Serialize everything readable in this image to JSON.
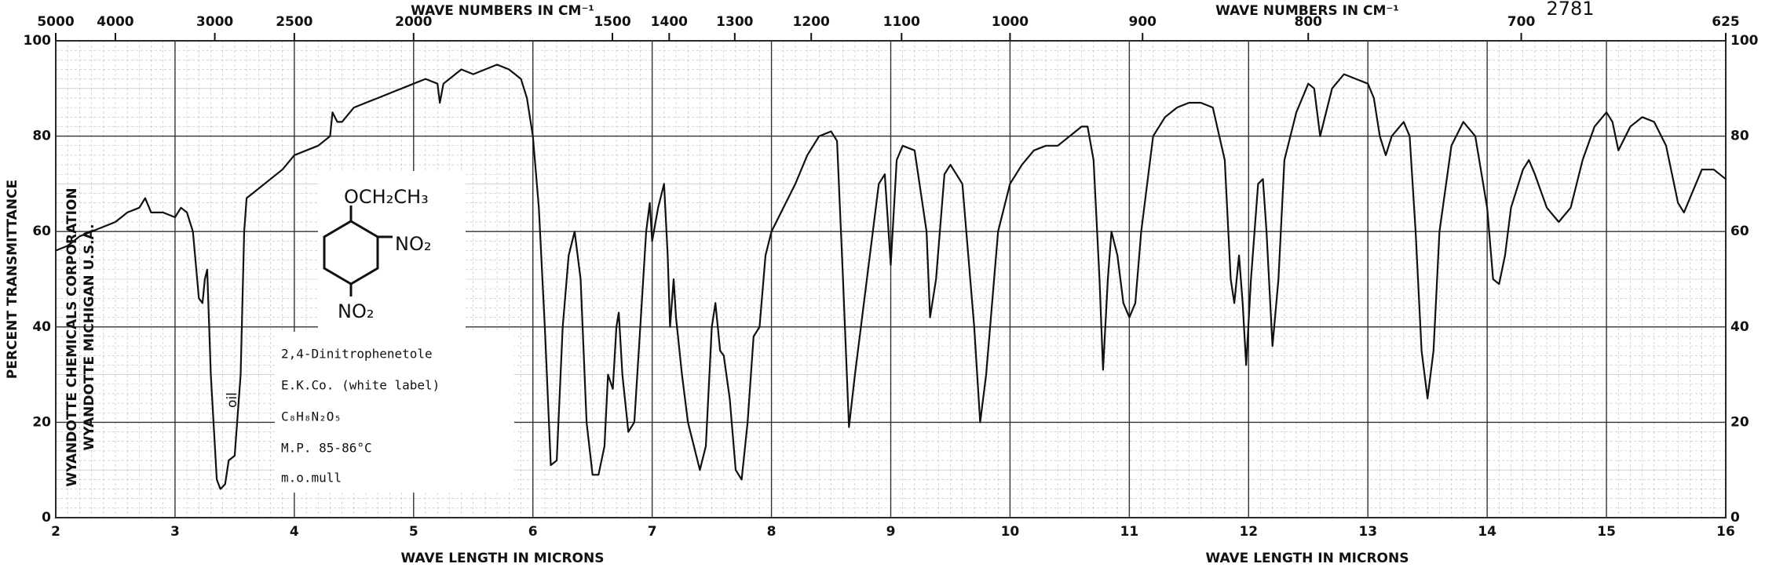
{
  "chart_data": {
    "type": "line",
    "sample_number": "2781",
    "x2label": "WAVE NUMBERS IN CM⁻¹",
    "xlabel": "WAVE LENGTH IN MICRONS",
    "ylabel": "PERCENT TRANSMITTANCE",
    "publisher": [
      "WYANDOTTE CHEMICALS CORPORATION",
      "WYANDOTTE MICHIGAN U.S.A."
    ],
    "band_note": "oil",
    "structure": [
      "OCH₂CH₃",
      "NO₂",
      "NO₂"
    ],
    "sample_info": [
      "2,4-Dinitrophenetole",
      "E.K.Co. (white label)",
      "C₈H₈N₂O₅",
      "M.P. 85-86°C",
      "m.o.mull"
    ],
    "xlim": [
      2,
      16
    ],
    "ylim": [
      0,
      100
    ],
    "xticks": [
      2,
      3,
      4,
      5,
      6,
      7,
      8,
      9,
      10,
      11,
      12,
      13,
      14,
      15,
      16
    ],
    "yticks": [
      0,
      20,
      40,
      60,
      80,
      100
    ],
    "x2lim": [
      5000,
      625
    ],
    "x2scale": "reciprocal",
    "x2ticks": [
      5000,
      4000,
      3000,
      2500,
      2000,
      1500,
      1400,
      1300,
      1200,
      1100,
      1000,
      900,
      800,
      700,
      625
    ],
    "grid": true,
    "color": "#111111",
    "x": [
      2.0,
      2.1,
      2.2,
      2.3,
      2.4,
      2.5,
      2.6,
      2.7,
      2.75,
      2.8,
      2.9,
      3.0,
      3.05,
      3.1,
      3.15,
      3.2,
      3.23,
      3.25,
      3.27,
      3.3,
      3.35,
      3.38,
      3.42,
      3.45,
      3.5,
      3.55,
      3.58,
      3.6,
      3.7,
      3.8,
      3.9,
      4.0,
      4.1,
      4.2,
      4.3,
      4.32,
      4.36,
      4.4,
      4.5,
      4.6,
      4.7,
      4.8,
      4.9,
      5.0,
      5.1,
      5.2,
      5.22,
      5.25,
      5.3,
      5.4,
      5.5,
      5.6,
      5.7,
      5.8,
      5.9,
      5.95,
      6.0,
      6.05,
      6.1,
      6.15,
      6.2,
      6.25,
      6.3,
      6.35,
      6.4,
      6.45,
      6.5,
      6.55,
      6.6,
      6.63,
      6.67,
      6.7,
      6.72,
      6.75,
      6.8,
      6.85,
      6.9,
      6.95,
      6.98,
      7.0,
      7.05,
      7.1,
      7.13,
      7.15,
      7.18,
      7.2,
      7.25,
      7.3,
      7.35,
      7.4,
      7.45,
      7.5,
      7.53,
      7.57,
      7.6,
      7.65,
      7.7,
      7.75,
      7.8,
      7.85,
      7.9,
      7.95,
      8.0,
      8.1,
      8.2,
      8.3,
      8.4,
      8.5,
      8.55,
      8.6,
      8.65,
      8.7,
      8.8,
      8.9,
      8.95,
      9.0,
      9.05,
      9.1,
      9.2,
      9.3,
      9.33,
      9.38,
      9.45,
      9.5,
      9.6,
      9.7,
      9.75,
      9.8,
      9.9,
      10.0,
      10.1,
      10.2,
      10.3,
      10.4,
      10.5,
      10.6,
      10.65,
      10.7,
      10.75,
      10.78,
      10.82,
      10.85,
      10.9,
      10.95,
      11.0,
      11.05,
      11.1,
      11.2,
      11.3,
      11.4,
      11.5,
      11.6,
      11.7,
      11.8,
      11.85,
      11.88,
      11.92,
      11.95,
      11.98,
      12.02,
      12.08,
      12.12,
      12.15,
      12.2,
      12.25,
      12.3,
      12.4,
      12.5,
      12.55,
      12.6,
      12.65,
      12.7,
      12.8,
      12.9,
      13.0,
      13.05,
      13.1,
      13.15,
      13.2,
      13.3,
      13.35,
      13.4,
      13.45,
      13.5,
      13.55,
      13.6,
      13.7,
      13.8,
      13.9,
      14.0,
      14.05,
      14.1,
      14.15,
      14.2,
      14.3,
      14.35,
      14.4,
      14.5,
      14.6,
      14.7,
      14.8,
      14.9,
      15.0,
      15.05,
      15.1,
      15.2,
      15.3,
      15.4,
      15.5,
      15.6,
      15.65,
      15.7,
      15.8,
      15.9,
      16.0
    ],
    "values": [
      56,
      57,
      59,
      60,
      61,
      62,
      64,
      65,
      67,
      64,
      64,
      63,
      65,
      64,
      60,
      46,
      45,
      50,
      52,
      30,
      8,
      6,
      7,
      12,
      13,
      30,
      60,
      67,
      69,
      71,
      73,
      76,
      77,
      78,
      80,
      85,
      83,
      83,
      86,
      87,
      88,
      89,
      90,
      91,
      92,
      91,
      87,
      91,
      92,
      94,
      93,
      94,
      95,
      94,
      92,
      88,
      80,
      65,
      40,
      11,
      12,
      40,
      55,
      60,
      50,
      20,
      9,
      9,
      15,
      30,
      27,
      40,
      43,
      30,
      18,
      20,
      40,
      60,
      66,
      58,
      65,
      70,
      55,
      40,
      50,
      42,
      30,
      20,
      15,
      10,
      15,
      40,
      45,
      35,
      34,
      25,
      10,
      8,
      20,
      38,
      40,
      55,
      60,
      65,
      70,
      76,
      80,
      81,
      79,
      50,
      19,
      30,
      50,
      70,
      72,
      53,
      75,
      78,
      77,
      60,
      42,
      50,
      72,
      74,
      70,
      40,
      20,
      30,
      60,
      70,
      74,
      77,
      78,
      78,
      80,
      82,
      82,
      75,
      50,
      31,
      50,
      60,
      55,
      45,
      42,
      45,
      60,
      80,
      84,
      86,
      87,
      87,
      86,
      75,
      50,
      45,
      55,
      45,
      32,
      50,
      70,
      71,
      60,
      36,
      50,
      75,
      85,
      91,
      90,
      80,
      85,
      90,
      93,
      92,
      91,
      88,
      80,
      76,
      80,
      83,
      80,
      60,
      35,
      25,
      35,
      60,
      78,
      83,
      80,
      65,
      50,
      49,
      55,
      65,
      73,
      75,
      72,
      65,
      62,
      65,
      75,
      82,
      85,
      83,
      77,
      82,
      84,
      83,
      78,
      66,
      64,
      67,
      73,
      73,
      71
    ]
  }
}
